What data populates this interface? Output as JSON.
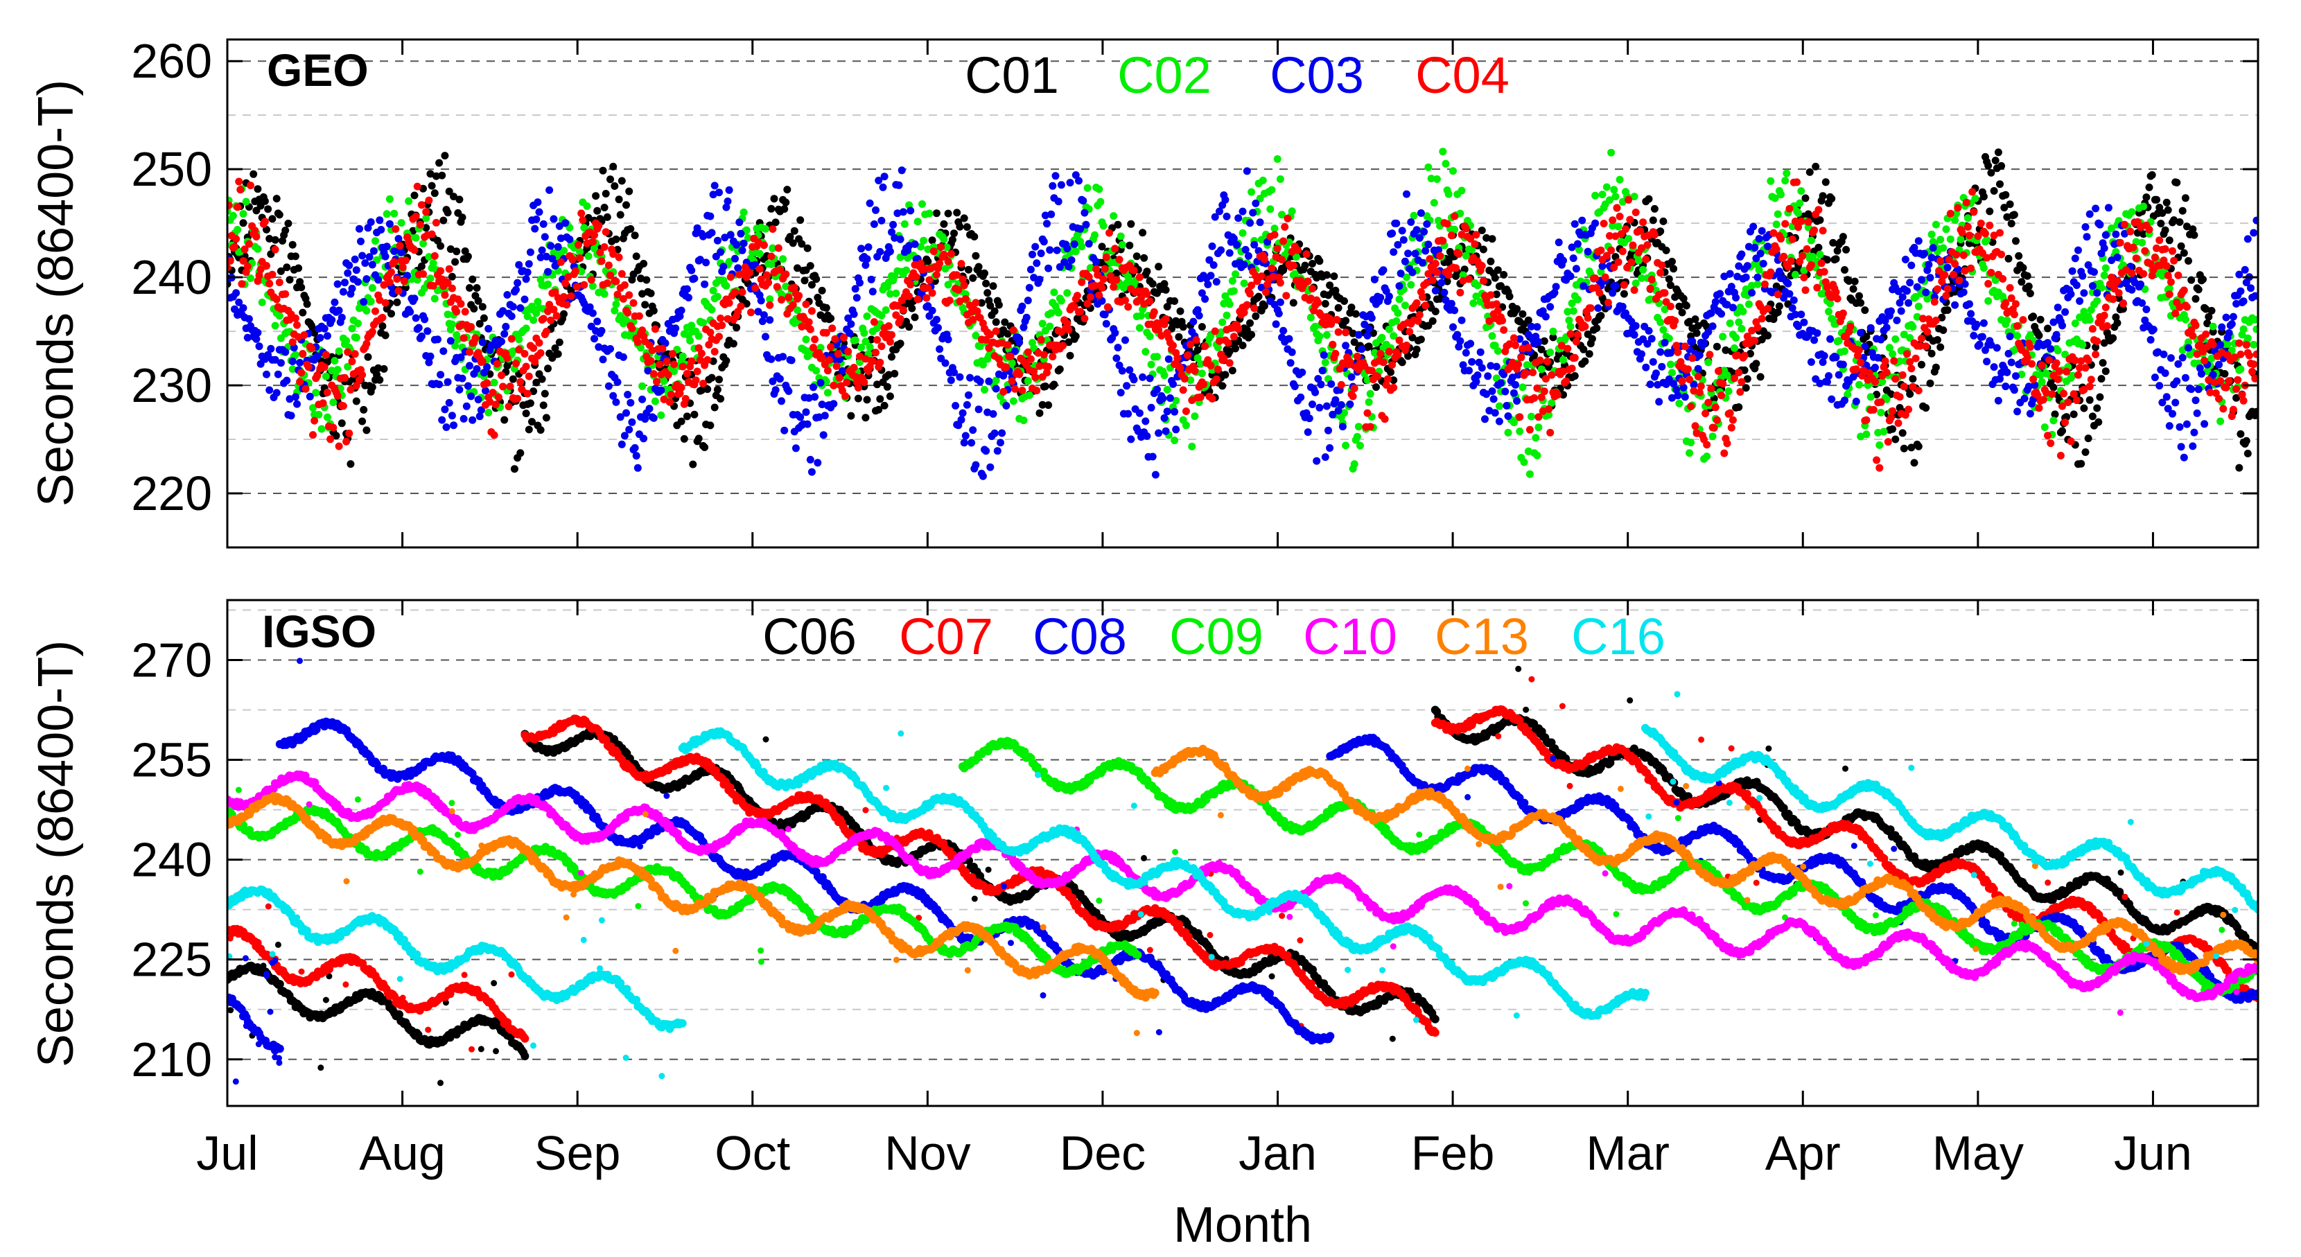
{
  "chart_data": [
    {
      "type": "scatter",
      "panel_label": "GEO",
      "xlabel": "",
      "ylabel": "Seconds (86400-T)",
      "x_categories": [
        "Jul",
        "Aug",
        "Sep",
        "Oct",
        "Nov",
        "Dec",
        "Jan",
        "Feb",
        "Mar",
        "Apr",
        "May",
        "Jun"
      ],
      "xlim_months": [
        0,
        11.6
      ],
      "ylim": [
        215,
        262
      ],
      "yticks": [
        220,
        230,
        240,
        250,
        260
      ],
      "grid": true,
      "legend_position": "top-center",
      "series": [
        {
          "name": "C01",
          "color": "#000000",
          "center": 237,
          "amplitude": 11,
          "amp_mod": 4,
          "period_days": 30,
          "phase": 0.3
        },
        {
          "name": "C02",
          "color": "#00ee00",
          "center": 237,
          "amplitude": 12,
          "amp_mod": 3,
          "period_days": 30,
          "phase": 1.4
        },
        {
          "name": "C03",
          "color": "#0000ee",
          "center": 236,
          "amplitude": 12,
          "amp_mod": 4,
          "period_days": 30,
          "phase": 2.5
        },
        {
          "name": "C04",
          "color": "#ff0000",
          "center": 236,
          "amplitude": 10,
          "amp_mod": 3,
          "period_days": 30,
          "phase": 0.9
        }
      ]
    },
    {
      "type": "scatter",
      "panel_label": "IGSO",
      "xlabel": "Month",
      "ylabel": "Seconds (86400-T)",
      "x_categories": [
        "Jul",
        "Aug",
        "Sep",
        "Oct",
        "Nov",
        "Dec",
        "Jan",
        "Feb",
        "Mar",
        "Apr",
        "May",
        "Jun"
      ],
      "xlim_months": [
        0,
        11.6
      ],
      "ylim": [
        203,
        279
      ],
      "yticks": [
        210,
        225,
        240,
        255,
        270
      ],
      "grid": true,
      "legend_position": "top-center",
      "series": [
        {
          "name": "C06",
          "color": "#000000",
          "segments": [
            [
              0,
              1.7,
              222,
              212
            ],
            [
              1.7,
              6.9,
              260,
              216
            ],
            [
              6.9,
              11.6,
              262,
              228
            ]
          ]
        },
        {
          "name": "C07",
          "color": "#ff0000",
          "segments": [
            [
              0,
              1.7,
              227,
              216
            ],
            [
              1.7,
              6.9,
              261,
              216
            ],
            [
              6.9,
              11.6,
              263,
              222
            ]
          ]
        },
        {
          "name": "C08",
          "color": "#0000ee",
          "segments": [
            [
              0,
              0.3,
              217,
              214
            ],
            [
              0.3,
              6.3,
              260,
              215
            ],
            [
              6.3,
              11.6,
              257,
              221
            ]
          ]
        },
        {
          "name": "C09",
          "color": "#00ee00",
          "segments": [
            [
              0,
              5.2,
              247,
              224
            ],
            [
              4.2,
              11.6,
              256,
              222
            ]
          ]
        },
        {
          "name": "C10",
          "color": "#ff00ff",
          "segments": [
            [
              0,
              11.6,
              251,
              221
            ]
          ]
        },
        {
          "name": "C13",
          "color": "#ff8000",
          "segments": [
            [
              0,
              5.3,
              248,
              222
            ],
            [
              5.3,
              11.6,
              255,
              224
            ]
          ]
        },
        {
          "name": "C16",
          "color": "#00e5ee",
          "segments": [
            [
              0,
              2.6,
              234,
              217
            ],
            [
              2.6,
              8.1,
              258,
              217
            ],
            [
              8.1,
              11.6,
              257,
              234
            ]
          ]
        }
      ]
    }
  ]
}
